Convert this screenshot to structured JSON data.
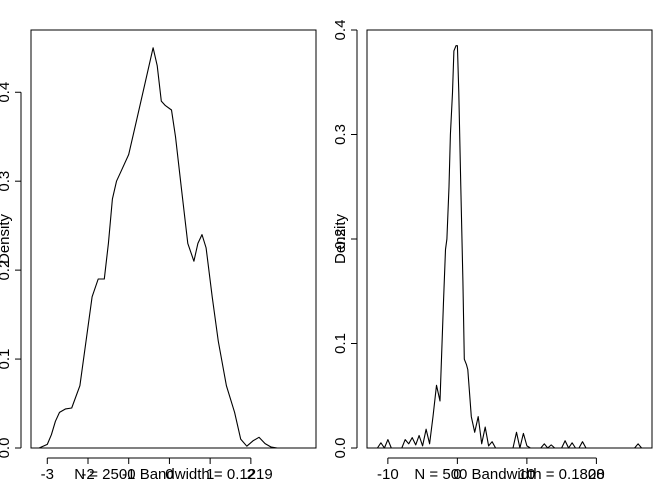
{
  "chart_data": [
    {
      "type": "line",
      "title": "",
      "ylabel": "Density",
      "sub": "N = 2500   Bandwidth = 0.1219",
      "xlim": [
        -3.4,
        3.6
      ],
      "ylim": [
        0,
        0.47
      ],
      "xticks": [
        -3,
        -2,
        -1,
        0,
        1,
        2
      ],
      "xtick_labels": [
        "-3",
        "-2",
        "-1",
        "0",
        "1",
        "2"
      ],
      "yticks": [
        0.0,
        0.1,
        0.2,
        0.3,
        0.4
      ],
      "ytick_labels": [
        "0.0",
        "0.1",
        "0.2",
        "0.3",
        "0.4"
      ],
      "grid": false,
      "series": [
        {
          "x": [
            -3.2,
            -3.0,
            -2.9,
            -2.8,
            -2.7,
            -2.55,
            -2.4,
            -2.2,
            -2.05,
            -1.9,
            -1.75,
            -1.6,
            -1.5,
            -1.4,
            -1.3,
            -1.2,
            -1.0,
            -0.8,
            -0.6,
            -0.4,
            -0.3,
            -0.2,
            -0.1,
            0.05,
            0.15,
            0.3,
            0.45,
            0.6,
            0.7,
            0.8,
            0.9,
            1.05,
            1.2,
            1.4,
            1.6,
            1.75,
            1.9,
            2.05,
            2.2,
            2.35,
            2.5,
            2.65,
            3.0
          ],
          "y": [
            0.0,
            0.004,
            0.015,
            0.03,
            0.04,
            0.044,
            0.045,
            0.07,
            0.12,
            0.17,
            0.19,
            0.19,
            0.23,
            0.28,
            0.3,
            0.31,
            0.33,
            0.37,
            0.41,
            0.45,
            0.43,
            0.39,
            0.385,
            0.38,
            0.35,
            0.29,
            0.23,
            0.21,
            0.23,
            0.24,
            0.225,
            0.17,
            0.12,
            0.07,
            0.04,
            0.01,
            0.002,
            0.008,
            0.012,
            0.005,
            0.001,
            0.0,
            0.0
          ]
        }
      ]
    },
    {
      "type": "line",
      "title": "",
      "ylabel": "Density",
      "sub": "N = 500   Bandwidth = 0.1808",
      "xlim": [
        -13,
        28
      ],
      "ylim": [
        0,
        0.4
      ],
      "xticks": [
        -10,
        0,
        10,
        20
      ],
      "xtick_labels": [
        "-10",
        "0",
        "10",
        "20"
      ],
      "yticks": [
        0.0,
        0.1,
        0.2,
        0.3,
        0.4
      ],
      "ytick_labels": [
        "0.0",
        "0.1",
        "0.2",
        "0.3",
        "0.4"
      ],
      "grid": false,
      "series": [
        {
          "x": [
            -11.5,
            -11.0,
            -10.5,
            -10.0,
            -9.5,
            -9.0,
            -8.0,
            -7.5,
            -7.0,
            -6.5,
            -6.0,
            -5.5,
            -5.0,
            -4.5,
            -4.0,
            -3.5,
            -3.0,
            -2.5,
            -2.0,
            -1.7,
            -1.5,
            -1.2,
            -1.0,
            -0.7,
            -0.5,
            -0.2,
            0.0,
            0.2,
            0.5,
            0.8,
            1.0,
            1.3,
            1.5,
            2.0,
            2.5,
            3.0,
            3.5,
            4.0,
            4.5,
            5.0,
            5.5,
            6.0,
            7.0,
            8.0,
            8.5,
            9.0,
            9.5,
            10.0,
            10.5,
            11.0,
            12.0,
            12.5,
            13.0,
            13.5,
            14.0,
            15.0,
            15.5,
            16.0,
            16.5,
            17.0,
            17.5,
            18.0,
            18.5,
            19.0,
            20.0,
            22.0,
            24.0,
            25.5,
            26.0,
            26.5
          ],
          "y": [
            0,
            0.005,
            0,
            0.008,
            0,
            0,
            0,
            0.008,
            0.004,
            0.01,
            0.003,
            0.012,
            0.002,
            0.018,
            0.004,
            0.03,
            0.06,
            0.045,
            0.14,
            0.19,
            0.2,
            0.25,
            0.3,
            0.34,
            0.38,
            0.385,
            0.385,
            0.34,
            0.25,
            0.16,
            0.085,
            0.08,
            0.075,
            0.03,
            0.015,
            0.03,
            0.004,
            0.02,
            0.002,
            0.006,
            0,
            0,
            0,
            0,
            0.015,
            0,
            0.014,
            0.002,
            0,
            0,
            0,
            0.004,
            0,
            0.003,
            0,
            0,
            0.007,
            0,
            0.005,
            0,
            0,
            0.006,
            0,
            0,
            0,
            0,
            0,
            0,
            0.004,
            0
          ]
        }
      ]
    }
  ]
}
